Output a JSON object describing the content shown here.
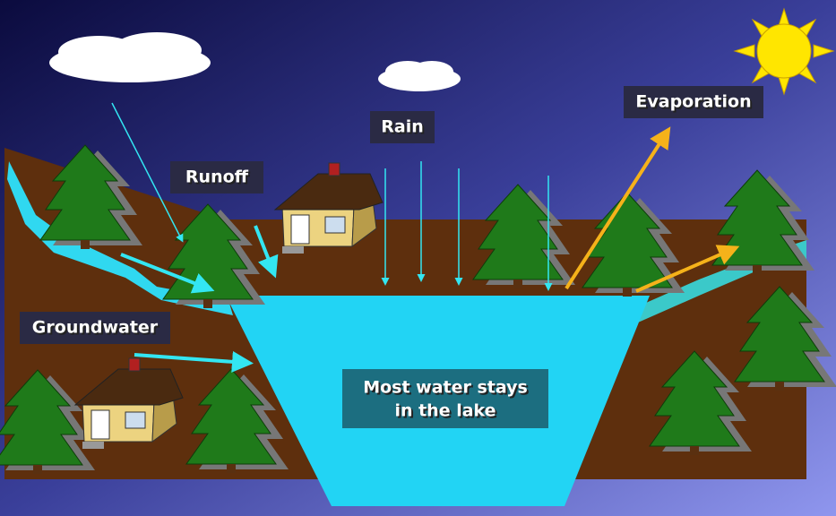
{
  "labels": {
    "runoff": "Runoff",
    "rain": "Rain",
    "evaporation": "Evaporation",
    "groundwater": "Groundwater",
    "lake": [
      "Most water stays",
      "in the lake"
    ]
  }
}
